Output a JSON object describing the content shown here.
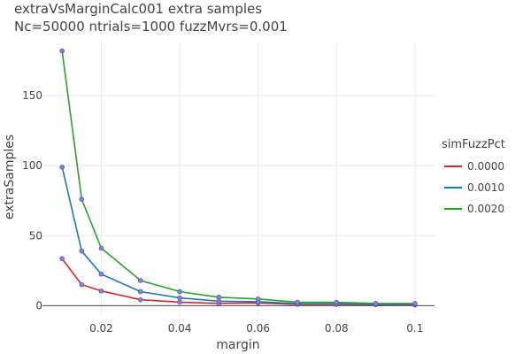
{
  "chart_data": {
    "type": "line",
    "title": "extraVsMarginCalc001 extra samples",
    "subtitle": "Nc=50000 ntrials=1000 fuzzMvrs=0.001",
    "xlabel": "margin",
    "ylabel": "extraSamples",
    "xlim": [
      0.005,
      0.105
    ],
    "ylim": [
      -8,
      188
    ],
    "xticks": [
      0.02,
      0.04,
      0.06,
      0.08,
      0.1
    ],
    "xtick_labels": [
      "0.02",
      "0.04",
      "0.06",
      "0.08",
      "0.1"
    ],
    "yticks": [
      0,
      50,
      100,
      150
    ],
    "ytick_labels": [
      "0",
      "50",
      "100",
      "150"
    ],
    "grid": true,
    "legend_title": "simFuzzPct",
    "legend_position": "right",
    "x": [
      0.01,
      0.015,
      0.02,
      0.03,
      0.04,
      0.05,
      0.06,
      0.07,
      0.08,
      0.09,
      0.1
    ],
    "series": [
      {
        "name": "0.0000",
        "color": "#d62728",
        "values": [
          33.5,
          15,
          10.5,
          4.2,
          2.5,
          1.6,
          1.9,
          0.9,
          0.9,
          0.7,
          0.5
        ]
      },
      {
        "name": "0.0010",
        "color": "#1f77b4",
        "values": [
          99,
          39,
          22.5,
          10,
          5.5,
          3.2,
          2.8,
          1.4,
          1.3,
          1.0,
          0.9
        ]
      },
      {
        "name": "0.0020",
        "color": "#2ca02c",
        "values": [
          182,
          76,
          41,
          18,
          10,
          6,
          4.8,
          2.5,
          2.4,
          1.6,
          1.5
        ]
      }
    ]
  }
}
